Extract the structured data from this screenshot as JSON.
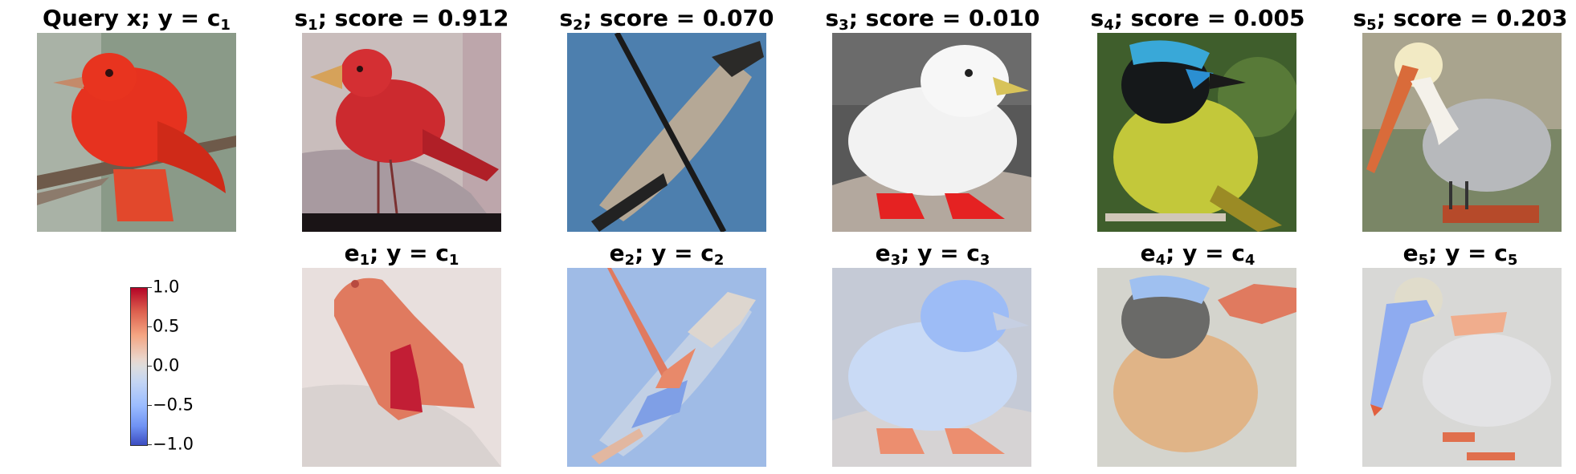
{
  "query": {
    "name": "Query x",
    "label": "y = c",
    "label_sub": "1"
  },
  "similar": [
    {
      "sym": "s",
      "idx": "1",
      "score_text": "; score = 0.912"
    },
    {
      "sym": "s",
      "idx": "2",
      "score_text": "; score = 0.070"
    },
    {
      "sym": "s",
      "idx": "3",
      "score_text": "; score = 0.010"
    },
    {
      "sym": "s",
      "idx": "4",
      "score_text": "; score = 0.005"
    },
    {
      "sym": "s",
      "idx": "5",
      "score_text": "; score = 0.203"
    }
  ],
  "explanations": [
    {
      "sym": "e",
      "idx": "1",
      "label": "; y = c",
      "label_sub": "1"
    },
    {
      "sym": "e",
      "idx": "2",
      "label": "; y = c",
      "label_sub": "2"
    },
    {
      "sym": "e",
      "idx": "3",
      "label": "; y = c",
      "label_sub": "3"
    },
    {
      "sym": "e",
      "idx": "4",
      "label": "; y = c",
      "label_sub": "4"
    },
    {
      "sym": "e",
      "idx": "5",
      "label": "; y = c",
      "label_sub": "5"
    }
  ],
  "colorbar": {
    "colormap": "coolwarm",
    "ticks": [
      "1.0",
      "0.5",
      "0.0",
      "−0.5",
      "−1.0"
    ],
    "colors": {
      "max": "#b40426",
      "mid": "#dddddd",
      "min": "#3b4cc0"
    }
  }
}
